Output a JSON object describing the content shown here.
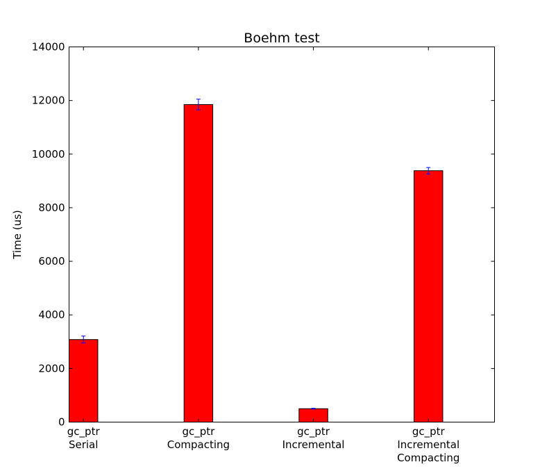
{
  "chart_data": {
    "type": "bar",
    "title": "Boehm test",
    "xlabel": "",
    "ylabel": "Time (us)",
    "ylim": [
      0,
      14000
    ],
    "yticks": [
      0,
      2000,
      4000,
      6000,
      8000,
      10000,
      12000,
      14000
    ],
    "categories": [
      [
        "gc_ptr",
        "Serial"
      ],
      [
        "gc_ptr",
        "Compacting"
      ],
      [
        "gc_ptr",
        "Incremental"
      ],
      [
        "gc_ptr",
        "Incremental",
        "Compacting"
      ]
    ],
    "values": [
      3080,
      11850,
      500,
      9380
    ],
    "errors": [
      130,
      200,
      15,
      120
    ],
    "colors": {
      "bar": "#ff0000",
      "bar_edge": "#000000",
      "error_bar": "#0000ff"
    },
    "grid": false,
    "legend": "none"
  }
}
